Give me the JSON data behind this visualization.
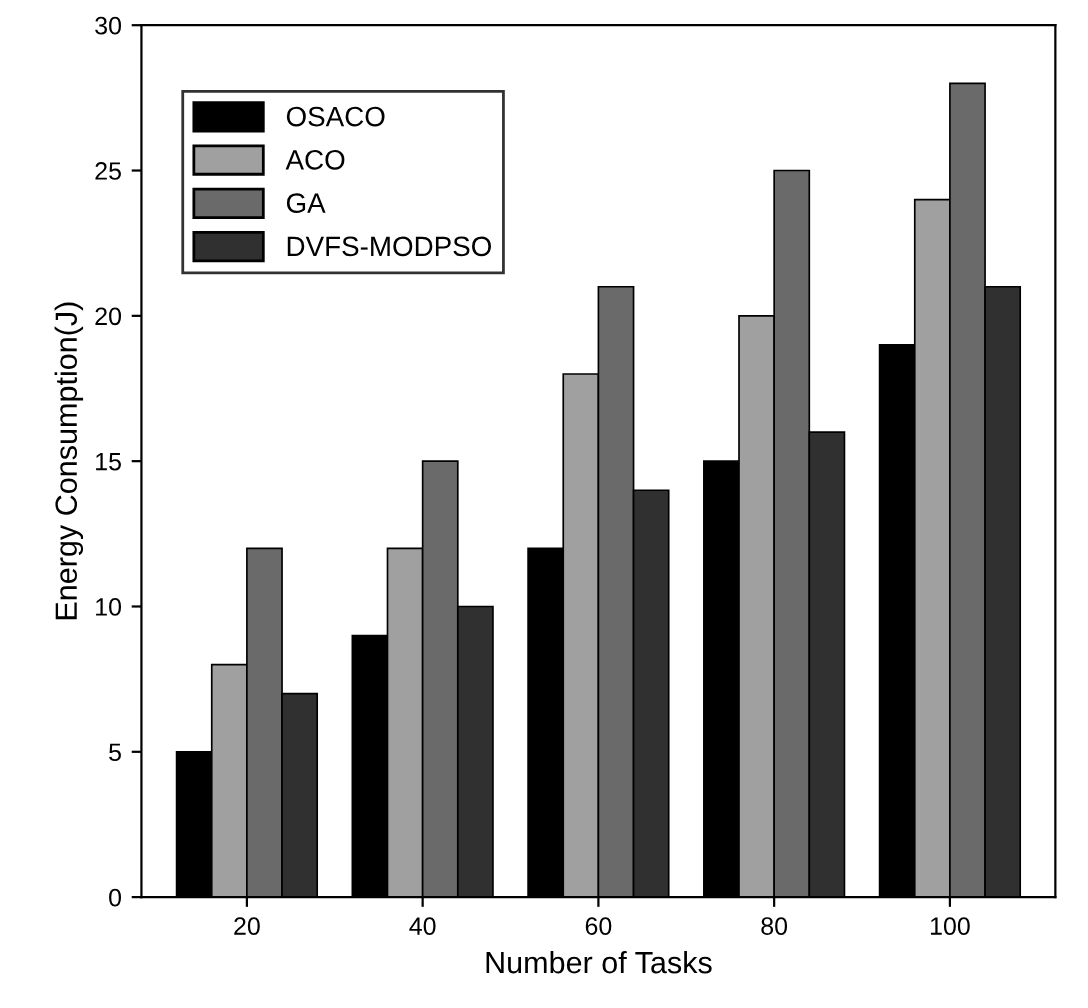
{
  "chart_data": {
    "type": "bar",
    "xlabel": "Number of Tasks",
    "ylabel": "Energy Consumption(J)",
    "categories": [
      "20",
      "40",
      "60",
      "80",
      "100"
    ],
    "series": [
      {
        "name": "OSACO",
        "color": "#000000",
        "values": [
          5,
          9,
          12,
          15,
          19
        ]
      },
      {
        "name": "ACO",
        "color": "#a0a0a0",
        "values": [
          8,
          12,
          18,
          20,
          24
        ]
      },
      {
        "name": "GA",
        "color": "#6a6a6a",
        "values": [
          12,
          15,
          21,
          25,
          28
        ]
      },
      {
        "name": "DVFS-MODPSO",
        "color": "#303030",
        "values": [
          7,
          10,
          14,
          16,
          21
        ]
      }
    ],
    "ylim": [
      0,
      30
    ],
    "yticks": [
      0,
      5,
      10,
      15,
      20,
      25,
      30
    ],
    "grid": false,
    "legend": "top left"
  }
}
